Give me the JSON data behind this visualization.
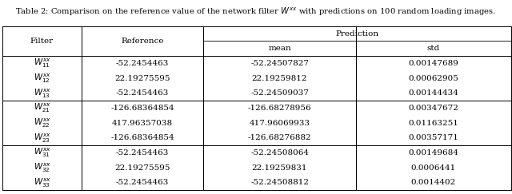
{
  "title": "Table 2: Comparison on the reference value of the network filter $W^{xx}$ with predictions on 100 random loading images.",
  "rows": [
    [
      "$W_{11}^{xx}$",
      "-52.2454463",
      "-52.24507827",
      "0.00147689"
    ],
    [
      "$W_{12}^{xx}$",
      "22.19275595",
      "22.19259812",
      "0.00062905"
    ],
    [
      "$W_{13}^{xx}$",
      "-52.2454463",
      "-52.24509037",
      "0.00144434"
    ],
    [
      "$W_{21}^{xx}$",
      "-126.68364854",
      "-126.68278956",
      "0.00347672"
    ],
    [
      "$W_{22}^{xx}$",
      "417.96357038",
      "417.96069933",
      "0.01163251"
    ],
    [
      "$W_{23}^{xx}$",
      "-126.68364854",
      "-126.68276882",
      "0.00357171"
    ],
    [
      "$W_{31}^{xx}$",
      "-52.2454463",
      "-52.24508064",
      "0.00149684"
    ],
    [
      "$W_{32}^{xx}$",
      "22.19275595",
      "22.19259831",
      "0.0006441"
    ],
    [
      "$W_{33}^{xx}$",
      "-52.2454463",
      "-52.24508812",
      "0.0014402"
    ]
  ],
  "group_separators": [
    3,
    6
  ],
  "col_bounds": [
    0.0,
    0.155,
    0.395,
    0.695,
    1.0
  ],
  "bg_color": "white",
  "font_size": 7.5,
  "title_font_size": 7.2
}
